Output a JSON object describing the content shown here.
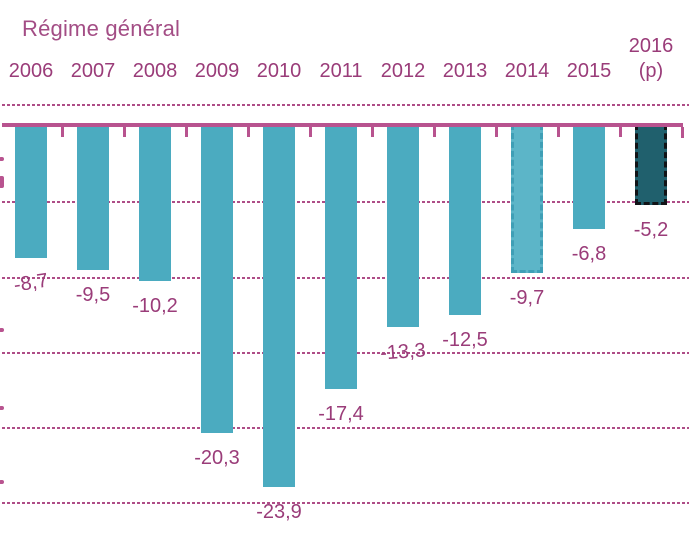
{
  "title": "Régime général",
  "colors": {
    "bar_teal": "#4babc0",
    "bar_teal_light": "#5cb5c8",
    "bar_teal_light_border": "#3f9fb6",
    "bar_dark_teal": "#20606d",
    "bar_dark_border": "#121417",
    "title_magenta": "#a34d85",
    "text_magenta": "#9a3c79",
    "axis_pink": "#b8538f",
    "grid_pink": "#ae4d87"
  },
  "chart_data": {
    "type": "bar",
    "title": "Régime général",
    "categories": [
      {
        "label": "2006",
        "sublabel": ""
      },
      {
        "label": "2007",
        "sublabel": ""
      },
      {
        "label": "2008",
        "sublabel": ""
      },
      {
        "label": "2009",
        "sublabel": ""
      },
      {
        "label": "2010",
        "sublabel": ""
      },
      {
        "label": "2011",
        "sublabel": ""
      },
      {
        "label": "2012",
        "sublabel": ""
      },
      {
        "label": "2013",
        "sublabel": ""
      },
      {
        "label": "2014",
        "sublabel": ""
      },
      {
        "label": "2015",
        "sublabel": ""
      },
      {
        "label": "2016",
        "sublabel": "(p)"
      }
    ],
    "values": [
      -8.7,
      -9.5,
      -10.2,
      -20.3,
      -23.9,
      -17.4,
      -13.3,
      -12.5,
      -9.7,
      -6.8,
      -5.2
    ],
    "value_labels": [
      "-8,7",
      "-9,5",
      "-10,2",
      "-20,3",
      "-23,9",
      "-17,4",
      "-13,3",
      "-12,5",
      "-9,7",
      "-6,8",
      "-5,2"
    ],
    "bar_styles": [
      "solid",
      "solid",
      "solid",
      "solid",
      "solid",
      "solid",
      "solid",
      "solid",
      "dashed-light",
      "solid",
      "dashed-dark"
    ],
    "label_rotate_deg": [
      -9,
      0,
      0,
      0,
      0,
      0,
      -4,
      0,
      0,
      0,
      0
    ],
    "xlabel": "",
    "ylabel": "",
    "ylim": [
      -25,
      0
    ],
    "gridline_values": [
      -5,
      -10,
      -15,
      -20,
      -25
    ],
    "grid": "horizontal dashed",
    "legend_position": "none",
    "decimal_separator": ","
  }
}
